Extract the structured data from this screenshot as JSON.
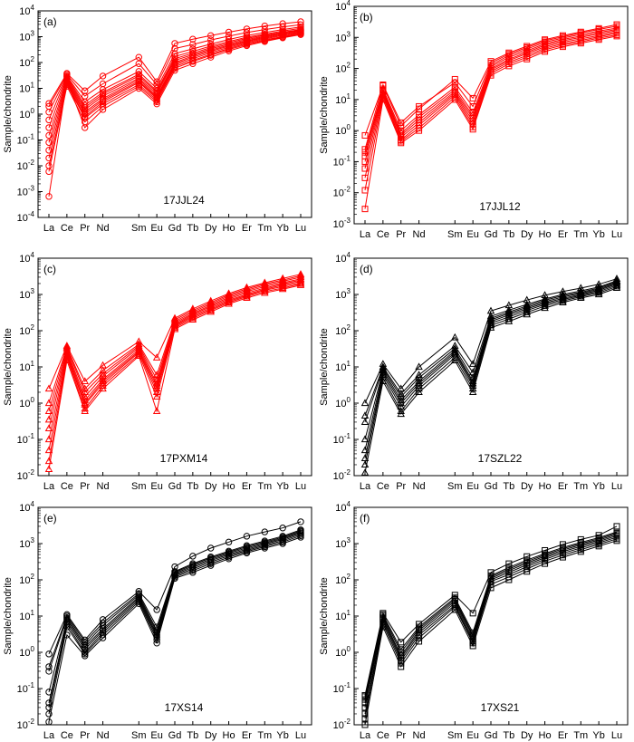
{
  "figure": {
    "ylabel": "Sample/chondrite",
    "categories": [
      "La",
      "Ce",
      "Pr",
      "Nd",
      "Sm",
      "Eu",
      "Gd",
      "Tb",
      "Dy",
      "Ho",
      "Er",
      "Tm",
      "Yb",
      "Lu"
    ],
    "yscale": "log"
  },
  "chart_data": [
    {
      "type": "line",
      "panel": "(a)",
      "sample": "17JJL24",
      "ylim_exp": [
        -4,
        4
      ],
      "color": "#ff0000",
      "marker": "circle",
      "series": [
        {
          "values": [
            0.00065,
            20,
            0.3,
            1.5,
            10,
            2.5,
            50,
            90,
            160,
            280,
            450,
            650,
            900,
            1200
          ]
        },
        {
          "values": [
            0.006,
            12,
            0.5,
            2,
            12,
            3,
            60,
            110,
            190,
            320,
            500,
            700,
            950,
            1300
          ]
        },
        {
          "values": [
            0.01,
            14,
            0.7,
            2.5,
            14,
            3.5,
            70,
            120,
            210,
            350,
            550,
            760,
            1000,
            1400
          ]
        },
        {
          "values": [
            0.02,
            16,
            0.8,
            3,
            17,
            4,
            80,
            140,
            240,
            390,
            600,
            830,
            1100,
            1500
          ]
        },
        {
          "values": [
            0.04,
            18,
            1,
            3.5,
            19,
            4.5,
            90,
            160,
            270,
            430,
            650,
            900,
            1200,
            1600
          ]
        },
        {
          "values": [
            0.08,
            20,
            1.2,
            4,
            22,
            5,
            100,
            180,
            300,
            470,
            700,
            980,
            1300,
            1700
          ]
        },
        {
          "values": [
            0.15,
            22,
            1.5,
            5,
            25,
            6,
            120,
            200,
            340,
            520,
            780,
            1050,
            1400,
            1800
          ]
        },
        {
          "values": [
            0.3,
            25,
            1.8,
            6,
            30,
            7,
            140,
            230,
            380,
            580,
            860,
            1150,
            1500,
            1900
          ]
        },
        {
          "values": [
            0.6,
            28,
            2.2,
            7,
            35,
            8,
            170,
            270,
            430,
            650,
            950,
            1250,
            1650,
            2100
          ]
        },
        {
          "values": [
            1.2,
            30,
            3,
            9,
            45,
            10,
            220,
            340,
            520,
            780,
            1100,
            1450,
            1900,
            2400
          ]
        },
        {
          "values": [
            2,
            34,
            5,
            15,
            90,
            14,
            350,
            500,
            750,
            1050,
            1450,
            1900,
            2400,
            2900
          ]
        },
        {
          "values": [
            2.6,
            38,
            8,
            30,
            160,
            18,
            550,
            800,
            1100,
            1500,
            2000,
            2600,
            3200,
            3800
          ]
        }
      ]
    },
    {
      "type": "line",
      "panel": "(b)",
      "sample": "17JJL12",
      "ylim_exp": [
        -3,
        4
      ],
      "color": "#ff0000",
      "marker": "square",
      "series": [
        {
          "values": [
            0.003,
            10,
            0.4,
            1,
            10,
            1.1,
            60,
            120,
            200,
            350,
            500,
            650,
            850,
            1100
          ]
        },
        {
          "values": [
            0.012,
            12,
            0.45,
            1.2,
            12,
            1.3,
            70,
            140,
            230,
            400,
            560,
            720,
            950,
            1200
          ]
        },
        {
          "values": [
            0.03,
            14,
            0.5,
            1.5,
            14,
            1.6,
            80,
            160,
            260,
            450,
            620,
            800,
            1050,
            1350
          ]
        },
        {
          "values": [
            0.06,
            16,
            0.6,
            1.8,
            16,
            2,
            90,
            180,
            300,
            500,
            700,
            900,
            1150,
            1500
          ]
        },
        {
          "values": [
            0.1,
            18,
            0.7,
            2.2,
            18,
            2.5,
            100,
            200,
            330,
            560,
            780,
            1000,
            1300,
            1650
          ]
        },
        {
          "values": [
            0.15,
            20,
            0.8,
            2.7,
            21,
            3,
            115,
            230,
            370,
            620,
            860,
            1100,
            1450,
            1800
          ]
        },
        {
          "values": [
            0.2,
            22,
            1,
            3.2,
            25,
            3.8,
            130,
            260,
            420,
            700,
            950,
            1250,
            1600,
            2000
          ]
        },
        {
          "values": [
            0.7,
            28,
            1.4,
            5,
            45,
            11,
            170,
            320,
            520,
            850,
            1150,
            1500,
            1950,
            2600
          ]
        },
        {
          "values": [
            0.25,
            30,
            1.8,
            6,
            35,
            6,
            150,
            290,
            470,
            780,
            1050,
            1400,
            1800,
            2300
          ]
        }
      ]
    },
    {
      "type": "line",
      "panel": "(c)",
      "sample": "17PXM14",
      "ylim_exp": [
        -2,
        4
      ],
      "color": "#ff0000",
      "marker": "triangle",
      "series": [
        {
          "values": [
            0.015,
            15,
            0.6,
            2.5,
            20,
            0.6,
            110,
            200,
            330,
            550,
            800,
            1100,
            1400,
            1800
          ]
        },
        {
          "values": [
            0.025,
            18,
            0.7,
            3,
            22,
            1.5,
            120,
            220,
            360,
            600,
            870,
            1200,
            1500,
            1950
          ]
        },
        {
          "values": [
            0.05,
            20,
            0.9,
            3.5,
            25,
            2,
            130,
            240,
            390,
            650,
            940,
            1300,
            1650,
            2100
          ]
        },
        {
          "values": [
            0.1,
            22,
            1,
            4,
            27,
            2.5,
            140,
            260,
            420,
            700,
            1000,
            1400,
            1800,
            2300
          ]
        },
        {
          "values": [
            0.2,
            25,
            1.2,
            4.5,
            30,
            3,
            150,
            280,
            460,
            760,
            1100,
            1500,
            1950,
            2500
          ]
        },
        {
          "values": [
            0.35,
            28,
            1.5,
            5.5,
            34,
            3.5,
            165,
            300,
            500,
            820,
            1200,
            1650,
            2100,
            2700
          ]
        },
        {
          "values": [
            0.6,
            32,
            2,
            6.5,
            38,
            4.5,
            180,
            330,
            550,
            900,
            1300,
            1800,
            2300,
            3000
          ]
        },
        {
          "values": [
            1,
            35,
            2.5,
            8,
            42,
            6,
            200,
            360,
            600,
            980,
            1420,
            1950,
            2500,
            3300
          ]
        },
        {
          "values": [
            2.5,
            38,
            4,
            11,
            50,
            18,
            220,
            400,
            660,
            1060,
            1550,
            2100,
            2750,
            3600
          ]
        }
      ]
    },
    {
      "type": "line",
      "panel": "(d)",
      "sample": "17SZL22",
      "ylim_exp": [
        -2,
        4
      ],
      "color": "#000000",
      "marker": "triangle",
      "series": [
        {
          "values": [
            0.012,
            4,
            0.5,
            2,
            15,
            2,
            120,
            180,
            280,
            420,
            600,
            800,
            1000,
            1500
          ]
        },
        {
          "values": [
            0.02,
            5,
            0.6,
            2.5,
            18,
            2.5,
            140,
            210,
            320,
            480,
            660,
            870,
            1100,
            1650
          ]
        },
        {
          "values": [
            0.03,
            6,
            0.8,
            3,
            22,
            3,
            160,
            240,
            360,
            530,
            720,
            940,
            1200,
            1800
          ]
        },
        {
          "values": [
            0.05,
            7,
            1,
            3.5,
            25,
            3.5,
            180,
            270,
            400,
            580,
            780,
            1000,
            1300,
            1950
          ]
        },
        {
          "values": [
            0.1,
            8,
            1.2,
            4,
            28,
            4,
            200,
            300,
            440,
            630,
            850,
            1080,
            1400,
            2100
          ]
        },
        {
          "values": [
            0.3,
            9,
            1.5,
            5,
            32,
            5,
            220,
            330,
            480,
            690,
            920,
            1150,
            1500,
            2250
          ]
        },
        {
          "values": [
            0.45,
            10,
            1.8,
            6,
            38,
            7,
            250,
            370,
            530,
            750,
            1000,
            1250,
            1600,
            2400
          ]
        },
        {
          "values": [
            1,
            12,
            2.5,
            10,
            65,
            12,
            350,
            500,
            700,
            950,
            1200,
            1500,
            1900,
            2700
          ]
        }
      ]
    },
    {
      "type": "line",
      "panel": "(e)",
      "sample": "17XS14",
      "ylim_exp": [
        -2,
        4
      ],
      "color": "#000000",
      "marker": "circle",
      "series": [
        {
          "values": [
            0.012,
            3,
            0.8,
            2.5,
            22,
            1.8,
            110,
            160,
            250,
            380,
            550,
            750,
            1000,
            1500
          ]
        },
        {
          "values": [
            0.02,
            5,
            0.9,
            3,
            25,
            2.2,
            120,
            180,
            280,
            420,
            600,
            820,
            1100,
            1650
          ]
        },
        {
          "values": [
            0.03,
            6,
            1,
            3.5,
            28,
            2.6,
            130,
            200,
            310,
            460,
            650,
            890,
            1200,
            1800
          ]
        },
        {
          "values": [
            0.04,
            7,
            1.2,
            4,
            31,
            3,
            140,
            220,
            340,
            500,
            700,
            960,
            1300,
            1950
          ]
        },
        {
          "values": [
            0.08,
            8,
            1.4,
            4.5,
            34,
            3.5,
            150,
            240,
            370,
            540,
            760,
            1030,
            1400,
            2100
          ]
        },
        {
          "values": [
            0.3,
            9,
            1.6,
            5.5,
            38,
            4,
            160,
            260,
            400,
            580,
            820,
            1100,
            1500,
            2250
          ]
        },
        {
          "values": [
            0.4,
            10,
            1.9,
            6.5,
            42,
            5,
            170,
            280,
            430,
            620,
            880,
            1180,
            1600,
            2400
          ]
        },
        {
          "values": [
            0.9,
            11,
            2.2,
            8,
            48,
            15,
            230,
            450,
            750,
            1100,
            1600,
            2100,
            2700,
            4000
          ]
        }
      ]
    },
    {
      "type": "line",
      "panel": "(f)",
      "sample": "17XS21",
      "ylim_exp": [
        -2,
        4
      ],
      "color": "#000000",
      "marker": "square",
      "series": [
        {
          "values": [
            0.01,
            5,
            0.4,
            2,
            15,
            1.5,
            60,
            100,
            170,
            280,
            420,
            600,
            850,
            1200
          ]
        },
        {
          "values": [
            0.015,
            6,
            0.5,
            2.5,
            18,
            1.8,
            75,
            120,
            200,
            330,
            480,
            680,
            950,
            1350
          ]
        },
        {
          "values": [
            0.02,
            7,
            0.6,
            3,
            20,
            2,
            90,
            140,
            230,
            370,
            540,
            760,
            1050,
            1500
          ]
        },
        {
          "values": [
            0.03,
            8,
            0.7,
            3.5,
            23,
            2.3,
            100,
            160,
            260,
            410,
            600,
            840,
            1150,
            1650
          ]
        },
        {
          "values": [
            0.04,
            9,
            0.8,
            4,
            26,
            2.7,
            110,
            180,
            290,
            450,
            660,
            920,
            1250,
            1800
          ]
        },
        {
          "values": [
            0.05,
            10,
            1,
            4.5,
            29,
            3,
            120,
            200,
            320,
            490,
            720,
            1000,
            1350,
            1950
          ]
        },
        {
          "values": [
            0.06,
            11,
            1.2,
            5,
            32,
            3.5,
            130,
            220,
            350,
            530,
            780,
            1080,
            1450,
            2100
          ]
        },
        {
          "values": [
            0.065,
            12,
            1.9,
            6,
            38,
            12,
            160,
            280,
            440,
            650,
            950,
            1300,
            1700,
            3000
          ]
        }
      ]
    }
  ]
}
